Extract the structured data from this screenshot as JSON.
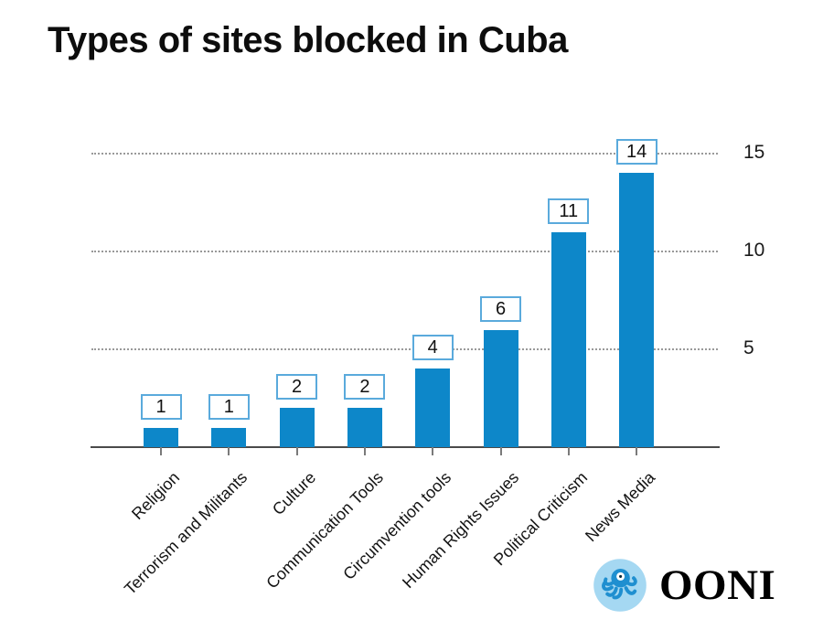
{
  "title": "Types of sites blocked in Cuba",
  "chart_data": {
    "type": "bar",
    "title": "Types of sites blocked in Cuba",
    "categories": [
      "Religion",
      "Terrorism and Militants",
      "Culture",
      "Communication Tools",
      "Circumvention tools",
      "Human Rights Issues",
      "Political Criticism",
      "News Media"
    ],
    "values": [
      1,
      1,
      2,
      2,
      4,
      6,
      11,
      14
    ],
    "value_labels": [
      "1",
      "1",
      "2",
      "2",
      "4",
      "6",
      "11",
      "14"
    ],
    "xlabel": "",
    "ylabel": "",
    "yticks": [
      5,
      10,
      15
    ],
    "ytick_labels": [
      "5",
      "10",
      "15"
    ],
    "ylim": [
      0,
      15
    ],
    "grid": "horizontal dotted",
    "legend": "none",
    "bar_color": "#0d87c9"
  },
  "branding": {
    "logo": "ooni-octopus-logo",
    "wordmark": "OONI"
  },
  "colors": {
    "bar": "#0d87c9",
    "label_box_border": "#5aaadc",
    "grid": "#999999",
    "axis": "#4a4a4a",
    "text": "#111111",
    "logo_circle": "#a5d8f2",
    "logo_octopus": "#1f8fd0"
  }
}
